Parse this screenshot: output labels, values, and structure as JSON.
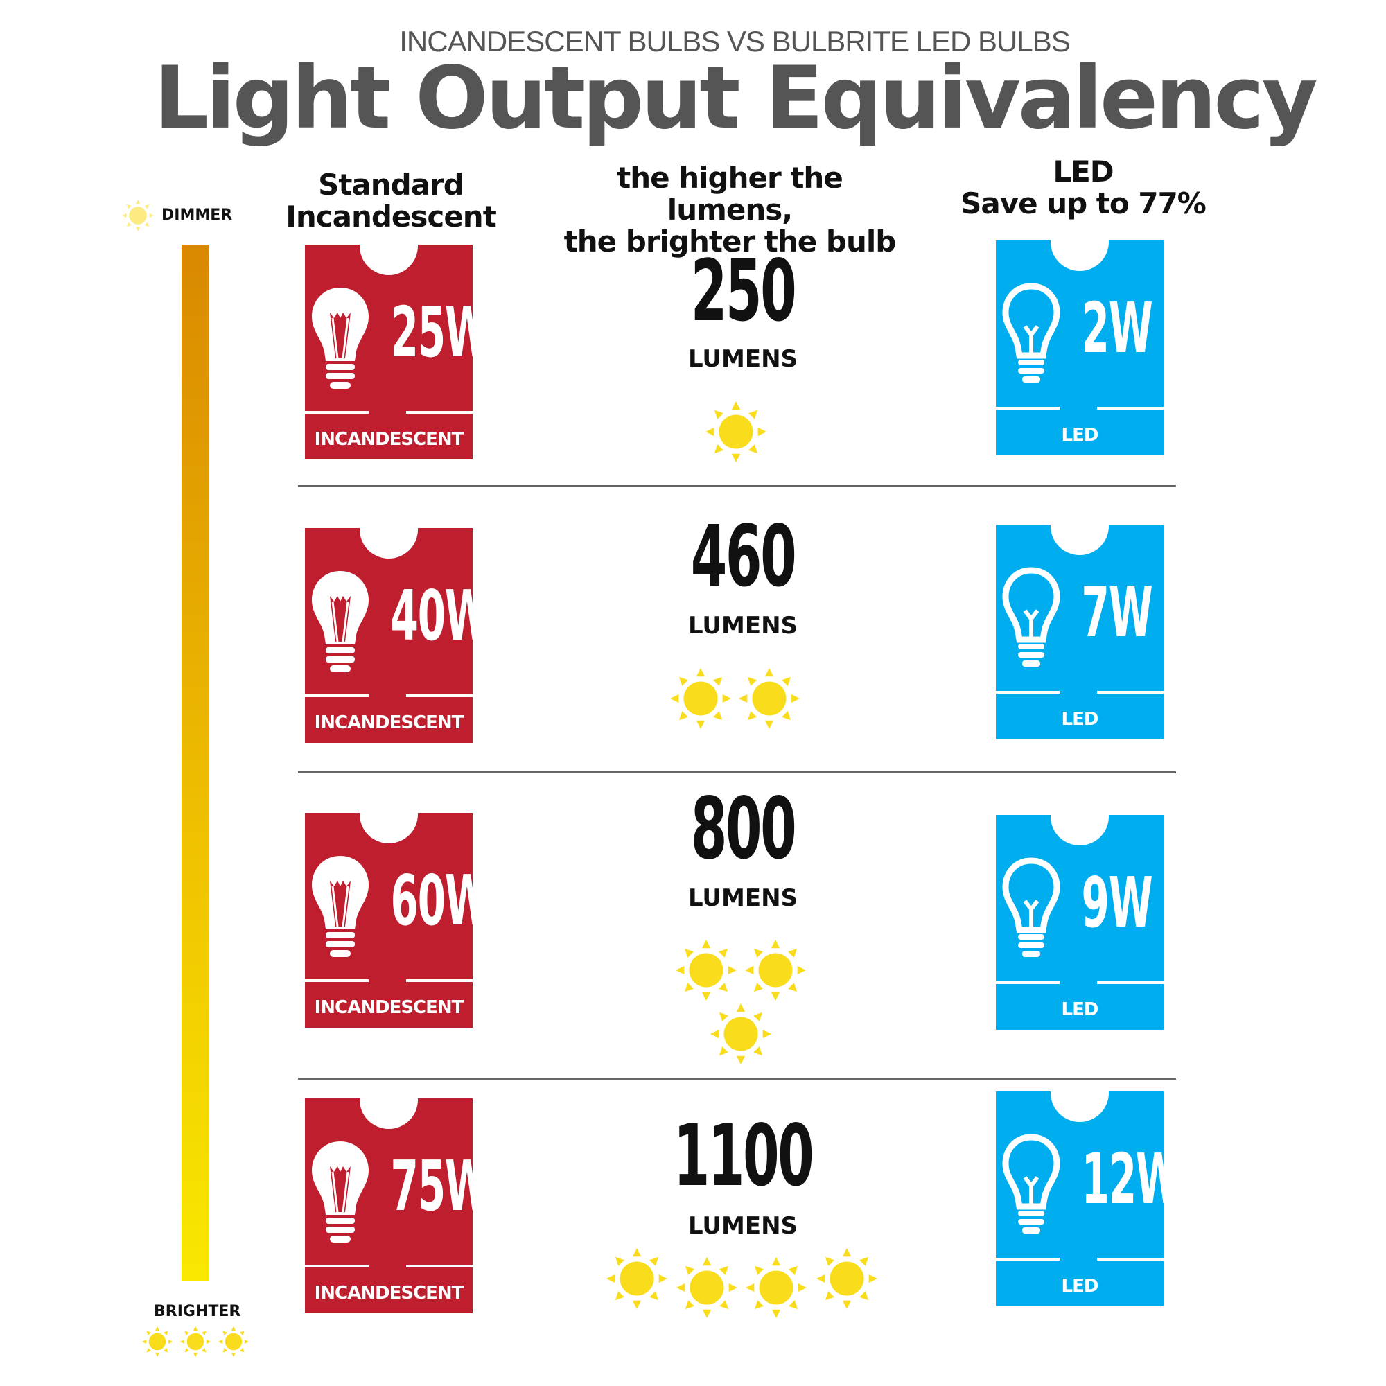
{
  "header": {
    "subtitle": "INCANDESCENT BULBS VS BULBRITE LED BULBS",
    "title": "Light Output Equivalency"
  },
  "columns": {
    "incandescent": [
      "Standard",
      "Incandescent"
    ],
    "middle": [
      "the higher the lumens,",
      "the brighter the bulb"
    ],
    "led": [
      "LED",
      "Save up to 77%"
    ]
  },
  "scale": {
    "top_label": "DIMMER",
    "bottom_label": "BRIGHTER",
    "bottom_suns": 3
  },
  "colors": {
    "incandescent": "#be1e2d",
    "led": "#00aeef",
    "sun": "#f9dc1c",
    "bar_top": "#d98800",
    "bar_bottom": "#f8e800"
  },
  "card_labels": {
    "incandescent": "INCANDESCENT",
    "led": "LED"
  },
  "units": "LUMENS",
  "rows": [
    {
      "incandescent": "25W",
      "lumens": "250",
      "led": "2W",
      "suns": 1
    },
    {
      "incandescent": "40W",
      "lumens": "460",
      "led": "7W",
      "suns": 2
    },
    {
      "incandescent": "60W",
      "lumens": "800",
      "led": "9W",
      "suns": 3
    },
    {
      "incandescent": "75W",
      "lumens": "1100",
      "led": "12W",
      "suns": 4
    }
  ]
}
